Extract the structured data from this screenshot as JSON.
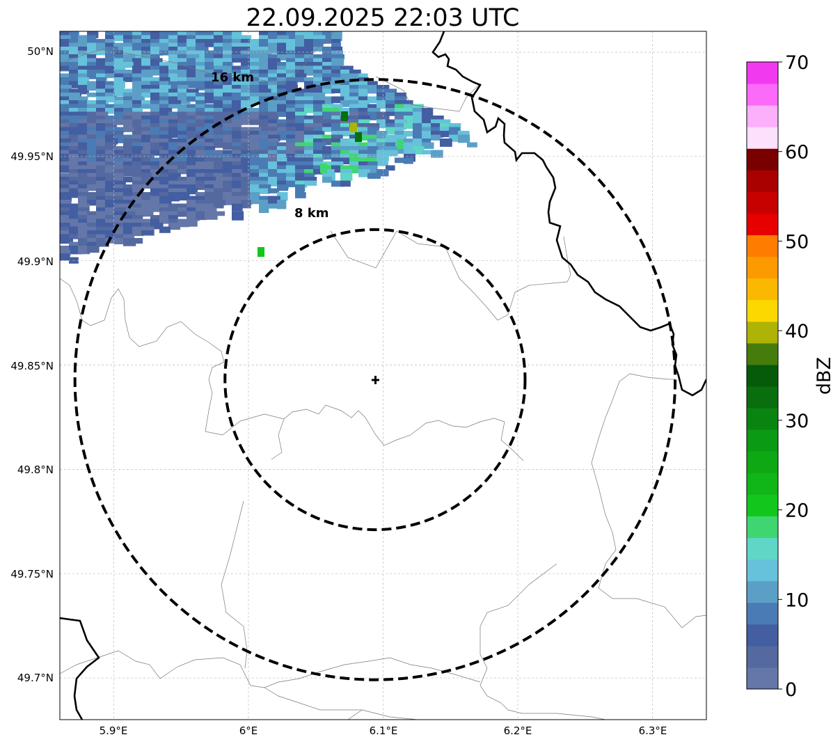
{
  "title": "22.09.2025 22:03 UTC",
  "map": {
    "lon_range": [
      5.86,
      6.34
    ],
    "lat_range": [
      49.68,
      50.01
    ],
    "x_ticks": [
      {
        "value": 5.9,
        "label": "5.9°E"
      },
      {
        "value": 6.0,
        "label": "6°E"
      },
      {
        "value": 6.1,
        "label": "6.1°E"
      },
      {
        "value": 6.2,
        "label": "6.2°E"
      },
      {
        "value": 6.3,
        "label": "6.3°E"
      }
    ],
    "y_ticks": [
      {
        "value": 50.0,
        "label": "50°N"
      },
      {
        "value": 49.95,
        "label": "49.95°N"
      },
      {
        "value": 49.9,
        "label": "49.9°N"
      },
      {
        "value": 49.85,
        "label": "49.85°N"
      },
      {
        "value": 49.8,
        "label": "49.8°N"
      },
      {
        "value": 49.75,
        "label": "49.75°N"
      },
      {
        "value": 49.7,
        "label": "49.7°N"
      }
    ],
    "radar_center": {
      "lon": 6.094,
      "lat": 49.843
    },
    "range_rings": [
      {
        "radius_km": 8,
        "label": "8 km"
      },
      {
        "radius_km": 16,
        "label": "16 km"
      }
    ]
  },
  "colorbar": {
    "label": "dBZ",
    "min": 0,
    "max": 70,
    "ticks": [
      "0",
      "10",
      "20",
      "30",
      "40",
      "50",
      "60",
      "70"
    ],
    "colors": [
      "#6477a8",
      "#54699f",
      "#435ea1",
      "#4a7bb4",
      "#5b9fc6",
      "#66c1db",
      "#5fd6c6",
      "#3fd672",
      "#11c71c",
      "#10b617",
      "#0ea815",
      "#0b9a13",
      "#0a8411",
      "#086e0e",
      "#055b0a",
      "#457c0b",
      "#aeb305",
      "#fdd800",
      "#fbb800",
      "#fd9a00",
      "#fe7d00",
      "#e60000",
      "#c70000",
      "#a90000",
      "#7a0000",
      "#fde0fb",
      "#fcaffb",
      "#fb6af9",
      "#f13af0"
    ]
  }
}
